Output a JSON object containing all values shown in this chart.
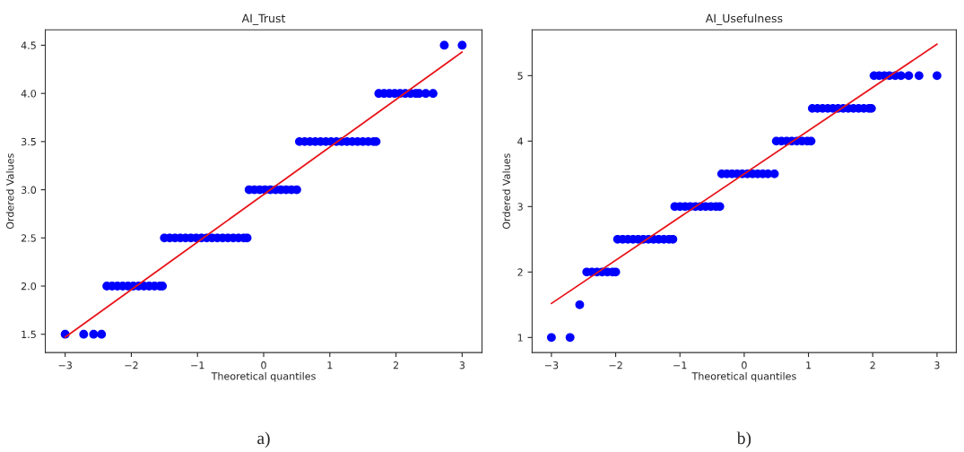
{
  "chart_data": [
    {
      "type": "scatter",
      "title": "AI_Trust",
      "xlabel": "Theoretical quantiles",
      "ylabel": "Ordered Values",
      "annotations": [
        "a)"
      ],
      "xlim": [
        -3.3,
        3.3
      ],
      "ylim": [
        1.31,
        4.66
      ],
      "xticks": [
        {
          "value": -3,
          "label": "−3"
        },
        {
          "value": -2,
          "label": "−2"
        },
        {
          "value": -1,
          "label": "−1"
        },
        0,
        1,
        2,
        3
      ],
      "yticks": [
        1.5,
        {
          "value": 2,
          "label": "2.0"
        },
        2.5,
        {
          "value": 3,
          "label": "3.0"
        },
        3.5,
        {
          "value": 4,
          "label": "4.0"
        },
        4.5
      ],
      "grid": false,
      "marker": "circle",
      "series": [
        {
          "color": "#0000ff",
          "x": [
            -3.0,
            -2.72,
            -2.57,
            -2.45,
            -2.37,
            -2.29,
            -2.21,
            -2.13,
            -2.05,
            -1.97,
            -1.89,
            -1.81,
            -1.73,
            -1.65,
            -1.57,
            -1.53,
            -1.5,
            -1.42,
            -1.34,
            -1.26,
            -1.18,
            -1.1,
            -1.02,
            -0.94,
            -0.86,
            -0.78,
            -0.7,
            -0.62,
            -0.54,
            -0.46,
            -0.38,
            -0.3,
            -0.25,
            -0.22,
            -0.14,
            -0.06,
            0.02,
            0.1,
            0.18,
            0.26,
            0.34,
            0.42,
            0.5,
            0.54,
            0.62,
            0.7,
            0.78,
            0.86,
            0.94,
            1.02,
            1.1,
            1.18,
            1.26,
            1.34,
            1.42,
            1.5,
            1.58,
            1.66,
            1.7,
            1.74,
            1.82,
            1.9,
            1.98,
            2.06,
            2.14,
            2.22,
            2.3,
            2.35,
            2.45,
            2.56,
            2.73,
            3.0
          ],
          "values": [
            1.5,
            1.5,
            1.5,
            1.5,
            2.0,
            2.0,
            2.0,
            2.0,
            2.0,
            2.0,
            2.0,
            2.0,
            2.0,
            2.0,
            2.0,
            2.0,
            2.5,
            2.5,
            2.5,
            2.5,
            2.5,
            2.5,
            2.5,
            2.5,
            2.5,
            2.5,
            2.5,
            2.5,
            2.5,
            2.5,
            2.5,
            2.5,
            2.5,
            3.0,
            3.0,
            3.0,
            3.0,
            3.0,
            3.0,
            3.0,
            3.0,
            3.0,
            3.0,
            3.5,
            3.5,
            3.5,
            3.5,
            3.5,
            3.5,
            3.5,
            3.5,
            3.5,
            3.5,
            3.5,
            3.5,
            3.5,
            3.5,
            3.5,
            3.5,
            4.0,
            4.0,
            4.0,
            4.0,
            4.0,
            4.0,
            4.0,
            4.0,
            4.0,
            4.0,
            4.0,
            4.5,
            4.5
          ]
        },
        {
          "type": "line",
          "color": "#e8141a",
          "marker": "none",
          "x": [
            -3,
            3
          ],
          "values": [
            1.47,
            4.43
          ]
        }
      ]
    },
    {
      "type": "scatter",
      "title": "AI_Usefulness",
      "xlabel": "Theoretical quantiles",
      "ylabel": "Ordered Values",
      "annotations": [
        "b)"
      ],
      "xlim": [
        -3.3,
        3.3
      ],
      "ylim": [
        0.77,
        5.7
      ],
      "xticks": [
        {
          "value": -3,
          "label": "−3"
        },
        {
          "value": -2,
          "label": "−2"
        },
        {
          "value": -1,
          "label": "−1"
        },
        0,
        1,
        2,
        3
      ],
      "yticks": [
        1,
        2,
        3,
        4,
        5
      ],
      "grid": false,
      "marker": "circle",
      "series": [
        {
          "color": "#0000ff",
          "x": [
            -3.0,
            -2.71,
            -2.56,
            -2.45,
            -2.37,
            -2.29,
            -2.21,
            -2.13,
            -2.05,
            -2.0,
            -1.97,
            -1.89,
            -1.81,
            -1.73,
            -1.65,
            -1.57,
            -1.49,
            -1.41,
            -1.33,
            -1.25,
            -1.17,
            -1.11,
            -1.08,
            -1.0,
            -0.92,
            -0.84,
            -0.76,
            -0.68,
            -0.6,
            -0.52,
            -0.44,
            -0.38,
            -0.35,
            -0.27,
            -0.19,
            -0.11,
            -0.03,
            0.05,
            0.13,
            0.21,
            0.29,
            0.37,
            0.47,
            0.5,
            0.58,
            0.66,
            0.74,
            0.82,
            0.9,
            0.98,
            1.04,
            1.06,
            1.14,
            1.22,
            1.3,
            1.38,
            1.46,
            1.54,
            1.62,
            1.7,
            1.78,
            1.86,
            1.94,
            1.98,
            2.02,
            2.1,
            2.18,
            2.26,
            2.35,
            2.44,
            2.56,
            2.72,
            3.0
          ],
          "values": [
            1,
            1,
            1.5,
            2,
            2,
            2,
            2,
            2,
            2,
            2,
            2.5,
            2.5,
            2.5,
            2.5,
            2.5,
            2.5,
            2.5,
            2.5,
            2.5,
            2.5,
            2.5,
            2.5,
            3,
            3,
            3,
            3,
            3,
            3,
            3,
            3,
            3,
            3,
            3.5,
            3.5,
            3.5,
            3.5,
            3.5,
            3.5,
            3.5,
            3.5,
            3.5,
            3.5,
            3.5,
            4,
            4,
            4,
            4,
            4,
            4,
            4,
            4,
            4.5,
            4.5,
            4.5,
            4.5,
            4.5,
            4.5,
            4.5,
            4.5,
            4.5,
            4.5,
            4.5,
            4.5,
            4.5,
            5,
            5,
            5,
            5,
            5,
            5,
            5,
            5,
            5
          ]
        },
        {
          "type": "line",
          "color": "#e8141a",
          "marker": "none",
          "x": [
            -3,
            3
          ],
          "values": [
            1.52,
            5.48
          ]
        }
      ]
    }
  ]
}
